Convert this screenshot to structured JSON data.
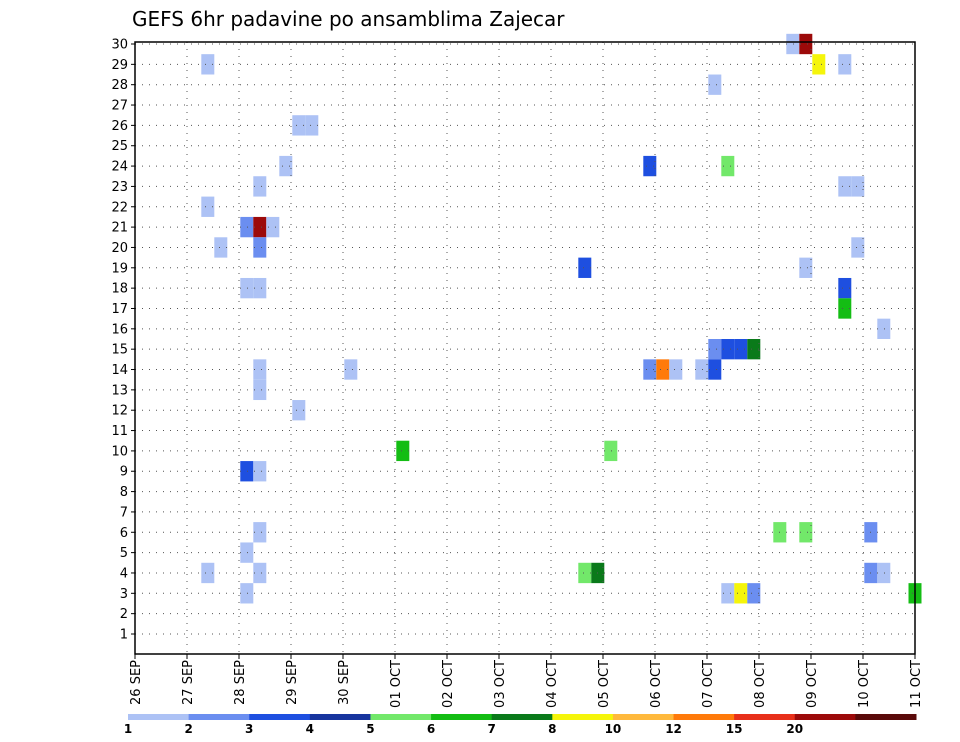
{
  "chart_data": {
    "type": "heatmap",
    "title": "GEFS 6hr padavine po ansamblima Zajecar",
    "y_ticks": [
      "1",
      "2",
      "3",
      "4",
      "5",
      "6",
      "7",
      "8",
      "9",
      "10",
      "11",
      "12",
      "13",
      "14",
      "15",
      "16",
      "17",
      "18",
      "19",
      "20",
      "21",
      "22",
      "23",
      "24",
      "25",
      "26",
      "27",
      "28",
      "29",
      "30"
    ],
    "x_ticks": [
      "26 SEP",
      "27 SEP",
      "28 SEP",
      "29 SEP",
      "30 SEP",
      "01 OCT",
      "02 OCT",
      "03 OCT",
      "04 OCT",
      "05 OCT",
      "06 OCT",
      "07 OCT",
      "08 OCT",
      "09 OCT",
      "10 OCT",
      "11 OCT"
    ],
    "grid": true,
    "legend": {
      "labels": [
        "1",
        "2",
        "3",
        "4",
        "5",
        "6",
        "7",
        "8",
        "10",
        "12",
        "15",
        "20"
      ],
      "colors": [
        "#adc2f5",
        "#6b8ef0",
        "#1e4fe0",
        "#17349e",
        "#72e86a",
        "#14bd14",
        "#0a7a1a",
        "#f5f50a",
        "#ffb93c",
        "#ff7a0a",
        "#e8301a",
        "#9c0a0a",
        "#5a0a0a"
      ]
    },
    "cells": [
      {
        "member": 30,
        "day": 12.65,
        "level": 0
      },
      {
        "member": 30,
        "day": 12.9,
        "level": 11
      },
      {
        "member": 29,
        "day": 1.4,
        "level": 0
      },
      {
        "member": 29,
        "day": 13.15,
        "level": 7
      },
      {
        "member": 29,
        "day": 13.65,
        "level": 0
      },
      {
        "member": 28,
        "day": 11.15,
        "level": 0
      },
      {
        "member": 26,
        "day": 3.15,
        "level": 0
      },
      {
        "member": 26,
        "day": 3.4,
        "level": 0
      },
      {
        "member": 24,
        "day": 2.9,
        "level": 0
      },
      {
        "member": 24,
        "day": 9.9,
        "level": 2
      },
      {
        "member": 24,
        "day": 11.4,
        "level": 4
      },
      {
        "member": 23,
        "day": 2.4,
        "level": 0
      },
      {
        "member": 23,
        "day": 13.65,
        "level": 0
      },
      {
        "member": 23,
        "day": 13.9,
        "level": 0
      },
      {
        "member": 22,
        "day": 1.4,
        "level": 0
      },
      {
        "member": 21,
        "day": 2.15,
        "level": 1
      },
      {
        "member": 21,
        "day": 2.4,
        "level": 11
      },
      {
        "member": 21,
        "day": 2.65,
        "level": 0
      },
      {
        "member": 20,
        "day": 1.65,
        "level": 0
      },
      {
        "member": 20,
        "day": 2.4,
        "level": 1
      },
      {
        "member": 20,
        "day": 13.9,
        "level": 0
      },
      {
        "member": 19,
        "day": 8.65,
        "level": 2
      },
      {
        "member": 19,
        "day": 12.9,
        "level": 0
      },
      {
        "member": 18,
        "day": 2.15,
        "level": 0
      },
      {
        "member": 18,
        "day": 2.4,
        "level": 0
      },
      {
        "member": 18,
        "day": 13.65,
        "level": 2
      },
      {
        "member": 17,
        "day": 13.65,
        "level": 5
      },
      {
        "member": 16,
        "day": 14.4,
        "level": 0
      },
      {
        "member": 15,
        "day": 11.15,
        "level": 1
      },
      {
        "member": 15,
        "day": 11.4,
        "level": 2
      },
      {
        "member": 15,
        "day": 11.65,
        "level": 2
      },
      {
        "member": 15,
        "day": 11.9,
        "level": 6
      },
      {
        "member": 14,
        "day": 2.4,
        "level": 0
      },
      {
        "member": 14,
        "day": 4.15,
        "level": 0
      },
      {
        "member": 14,
        "day": 9.9,
        "level": 1
      },
      {
        "member": 14,
        "day": 10.15,
        "level": 9
      },
      {
        "member": 14,
        "day": 10.4,
        "level": 0
      },
      {
        "member": 14,
        "day": 10.9,
        "level": 0
      },
      {
        "member": 14,
        "day": 11.15,
        "level": 2
      },
      {
        "member": 13,
        "day": 2.4,
        "level": 0
      },
      {
        "member": 12,
        "day": 3.15,
        "level": 0
      },
      {
        "member": 10,
        "day": 5.15,
        "level": 5
      },
      {
        "member": 10,
        "day": 9.15,
        "level": 4
      },
      {
        "member": 9,
        "day": 2.15,
        "level": 2
      },
      {
        "member": 9,
        "day": 2.4,
        "level": 0
      },
      {
        "member": 6,
        "day": 2.4,
        "level": 0
      },
      {
        "member": 6,
        "day": 12.4,
        "level": 4
      },
      {
        "member": 6,
        "day": 12.9,
        "level": 4
      },
      {
        "member": 6,
        "day": 14.15,
        "level": 1
      },
      {
        "member": 5,
        "day": 2.15,
        "level": 0
      },
      {
        "member": 4,
        "day": 1.4,
        "level": 0
      },
      {
        "member": 4,
        "day": 2.4,
        "level": 0
      },
      {
        "member": 4,
        "day": 8.65,
        "level": 4
      },
      {
        "member": 4,
        "day": 8.9,
        "level": 6
      },
      {
        "member": 4,
        "day": 14.15,
        "level": 1
      },
      {
        "member": 4,
        "day": 14.4,
        "level": 0
      },
      {
        "member": 3,
        "day": 2.15,
        "level": 0
      },
      {
        "member": 3,
        "day": 11.4,
        "level": 0
      },
      {
        "member": 3,
        "day": 11.65,
        "level": 7
      },
      {
        "member": 3,
        "day": 11.9,
        "level": 1
      },
      {
        "member": 3,
        "day": 15.0,
        "level": 5
      }
    ]
  }
}
